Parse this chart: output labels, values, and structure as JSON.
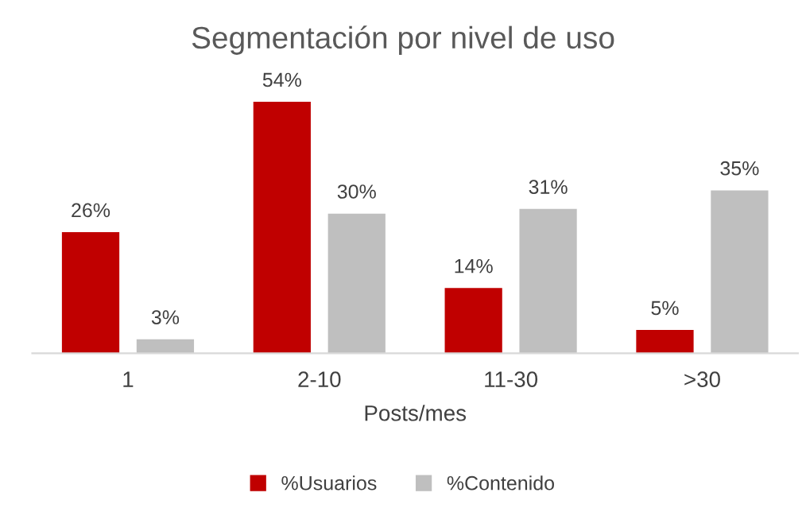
{
  "chart_data": {
    "type": "bar",
    "title": "Segmentación por nivel de uso",
    "xlabel": "Posts/mes",
    "categories": [
      "1",
      "2-10",
      "11-30",
      ">30"
    ],
    "series": [
      {
        "name": "%Usuarios",
        "color": "#c00000",
        "values": [
          26,
          54,
          14,
          5
        ],
        "value_labels": [
          "26%",
          "54%",
          "14%",
          "5%"
        ]
      },
      {
        "name": "%Contenido",
        "color": "#bfbfbf",
        "values": [
          3,
          30,
          31,
          35
        ],
        "value_labels": [
          "3%",
          "30%",
          "31%",
          "35%"
        ]
      }
    ],
    "legend": "bottom",
    "grid": false
  }
}
